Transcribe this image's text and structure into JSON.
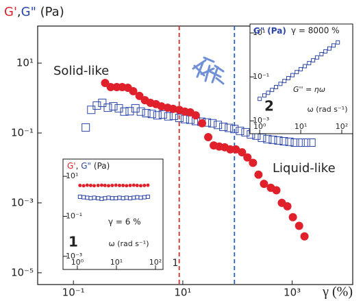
{
  "chart_data": [
    {
      "type": "scatter",
      "xlog": true,
      "ylog": true,
      "y_label": [
        {
          "text": "G'",
          "color": "#e0202a"
        },
        {
          "text": ",",
          "color": "#222222"
        },
        {
          "text": "G\"",
          "color": "#2b45a8"
        },
        {
          "text": " (Pa)",
          "color": "#222222"
        }
      ],
      "x_label": "γ (%)",
      "xlim": [
        0.0222,
        12800
      ],
      "ylim": [
        4.6e-06,
        115
      ],
      "xticks": [
        {
          "value": 0.1,
          "label": "10⁻¹"
        },
        {
          "value": 10,
          "label": "10¹"
        },
        {
          "value": 1000,
          "label": "10³"
        }
      ],
      "yticks": [
        {
          "value": 10,
          "label": "10¹"
        },
        {
          "value": 0.1,
          "label": "10⁻¹"
        },
        {
          "value": 0.001,
          "label": "10⁻³"
        },
        {
          "value": 1e-05,
          "label": "10⁻⁵"
        }
      ],
      "vlines": [
        {
          "value": 8.6,
          "color": "#d42a2a"
        },
        {
          "value": 88,
          "color": "#2b5fbf"
        }
      ],
      "annotations": [
        {
          "text": "Solid-like",
          "color": "#e0202a"
        },
        {
          "text": "Liquid-like",
          "color": "#2b45a8"
        },
        {
          "text": "1",
          "color": "#222222"
        }
      ],
      "series": [
        {
          "marker": "square",
          "color": "#2b45a8",
          "x": [
            0.168,
            0.212,
            0.268,
            0.337,
            0.426,
            0.537,
            0.676,
            0.853,
            1.07,
            1.36,
            1.71,
            2.15,
            2.72,
            3.43,
            4.32,
            5.44,
            6.86,
            8.65,
            10.9,
            13.7,
            17.3,
            21.9,
            27.6,
            34.8,
            43.8,
            55.2,
            69.7,
            87.8,
            111,
            140,
            176,
            222,
            280,
            352,
            444,
            560,
            706,
            891,
            1120,
            1420,
            1790,
            2250
          ],
          "values": [
            0.144,
            0.46,
            0.61,
            0.73,
            0.53,
            0.58,
            0.51,
            0.41,
            0.42,
            0.51,
            0.41,
            0.37,
            0.35,
            0.32,
            0.34,
            0.3,
            0.31,
            0.27,
            0.25,
            0.24,
            0.22,
            0.21,
            0.2,
            0.19,
            0.17,
            0.15,
            0.14,
            0.13,
            0.115,
            0.105,
            0.091,
            0.084,
            0.073,
            0.067,
            0.064,
            0.061,
            0.058,
            0.056,
            0.053,
            0.053,
            0.053,
            0.053
          ]
        },
        {
          "marker": "circle",
          "color": "#e0202a",
          "x": [
            0.38,
            0.48,
            0.62,
            0.78,
            0.99,
            1.24,
            1.61,
            2.03,
            2.56,
            3.23,
            4.07,
            5.29,
            6.66,
            8.65,
            10.9,
            13.7,
            17.3,
            22.5,
            29.2,
            36.8,
            46.4,
            58.5,
            73.8,
            93.1,
            121,
            152,
            192,
            242,
            305,
            407,
            514,
            647,
            817,
            1030,
            1340,
            1680
          ],
          "values": [
            2.7,
            2.06,
            2.06,
            2.06,
            1.97,
            1.57,
            1.15,
            0.87,
            0.73,
            0.67,
            0.58,
            0.53,
            0.49,
            0.46,
            0.41,
            0.39,
            0.32,
            0.19,
            0.076,
            0.044,
            0.041,
            0.039,
            0.034,
            0.034,
            0.028,
            0.02,
            0.014,
            0.0064,
            0.0035,
            0.0027,
            0.0023,
            0.001,
            0.0008,
            0.00039,
            0.00022,
            0.00011
          ]
        }
      ]
    },
    {
      "type": "scatter",
      "xlog": true,
      "ylog": true,
      "y_label": [
        {
          "text": "G\" (Pa)",
          "color": "#2b45a8"
        }
      ],
      "x_label": "ω (rad s⁻¹)",
      "xlim": [
        0.58,
        185
      ],
      "ylim": [
        0.00026,
        25.5
      ],
      "xticks": [
        {
          "value": 1,
          "label": "10⁰"
        },
        {
          "value": 10,
          "label": "10¹"
        },
        {
          "value": 100,
          "label": "10²"
        }
      ],
      "yticks": [
        {
          "value": 10,
          "label": "10¹"
        },
        {
          "value": 0.1,
          "label": "10⁻¹"
        },
        {
          "value": 0.001,
          "label": "10⁻³"
        }
      ],
      "annotations": [
        {
          "text": "γ = 8000 %",
          "color": "#2b45a8"
        },
        {
          "text": "2",
          "color": "#111111"
        },
        {
          "text": "G'' = ηω",
          "color": "#222222"
        }
      ],
      "series": [
        {
          "marker": "square",
          "color": "#2b45a8",
          "x": [
            1,
            1.3,
            1.6,
            2,
            2.5,
            3.2,
            4,
            5,
            6.3,
            8,
            10,
            12.6,
            16,
            20,
            25,
            32,
            40,
            50,
            63,
            80
          ],
          "values": [
            0.01,
            0.0143,
            0.0189,
            0.0255,
            0.0345,
            0.0481,
            0.0651,
            0.0878,
            0.12,
            0.166,
            0.224,
            0.307,
            0.422,
            0.57,
            0.77,
            1.08,
            1.45,
            1.96,
            2.69,
            3.71
          ]
        }
      ]
    },
    {
      "type": "scatter",
      "xlog": true,
      "ylog": true,
      "y_label": [
        {
          "text": "G'",
          "color": "#e0202a"
        },
        {
          "text": ", ",
          "color": "#222222"
        },
        {
          "text": "G\"",
          "color": "#2b45a8"
        },
        {
          "text": " (Pa)",
          "color": "#222222"
        }
      ],
      "x_label": "ω (rad s⁻¹)",
      "xlim": [
        0.43,
        156
      ],
      "ylim": [
        0.00022,
        72.8
      ],
      "xticks": [
        {
          "value": 1,
          "label": "10⁰"
        },
        {
          "value": 10,
          "label": "10¹"
        },
        {
          "value": 100,
          "label": "10²"
        }
      ],
      "yticks": [
        {
          "value": 10,
          "label": "10¹"
        },
        {
          "value": 0.1,
          "label": "10⁻¹"
        },
        {
          "value": 0.001,
          "label": "10⁻³"
        }
      ],
      "annotations": [
        {
          "text": "γ = 6 %",
          "color": "#2b45a8"
        },
        {
          "text": "1",
          "color": "#111111"
        }
      ],
      "series": [
        {
          "marker": "square",
          "color": "#2b45a8",
          "x": [
            1.17,
            1.45,
            1.79,
            2.2,
            2.7,
            3.4,
            4.2,
            5.1,
            6.3,
            7.8,
            9.7,
            12,
            14.8,
            18.2,
            22.5,
            27.8,
            34,
            42,
            52,
            64
          ],
          "values": [
            0.95,
            0.9,
            0.85,
            0.8,
            0.85,
            0.8,
            0.75,
            0.8,
            0.85,
            0.8,
            0.8,
            0.85,
            0.8,
            0.85,
            0.8,
            0.85,
            0.9,
            0.85,
            0.9,
            0.95
          ]
        },
        {
          "marker": "circle",
          "color": "#e0202a",
          "x": [
            1.17,
            1.45,
            1.79,
            2.2,
            2.7,
            3.4,
            4.2,
            5.1,
            6.3,
            7.8,
            9.7,
            12,
            14.8,
            18.2,
            22.5,
            27.8,
            34,
            42,
            52,
            64
          ],
          "values": [
            3.5,
            3.4,
            3.6,
            3.5,
            3.4,
            3.5,
            3.6,
            3.5,
            3.4,
            3.5,
            3.6,
            3.5,
            3.5,
            3.4,
            3.5,
            3.6,
            3.5,
            3.4,
            3.5,
            3.6
          ]
        }
      ]
    }
  ]
}
